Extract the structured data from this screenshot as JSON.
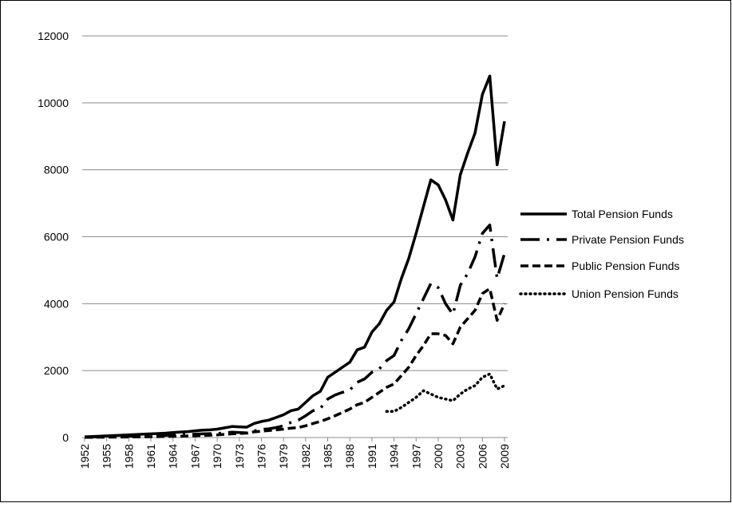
{
  "chart_data": {
    "type": "line",
    "x": [
      1952,
      1953,
      1954,
      1955,
      1956,
      1957,
      1958,
      1959,
      1960,
      1961,
      1962,
      1963,
      1964,
      1965,
      1966,
      1967,
      1968,
      1969,
      1970,
      1971,
      1972,
      1973,
      1974,
      1975,
      1976,
      1977,
      1978,
      1979,
      1980,
      1981,
      1982,
      1983,
      1984,
      1985,
      1986,
      1987,
      1988,
      1989,
      1990,
      1991,
      1992,
      1993,
      1994,
      1995,
      1996,
      1997,
      1998,
      1999,
      2000,
      2001,
      2002,
      2003,
      2004,
      2005,
      2006,
      2007,
      2008,
      2009
    ],
    "xlim": [
      1952,
      2009
    ],
    "xticks": [
      1952,
      1955,
      1958,
      1961,
      1964,
      1967,
      1970,
      1973,
      1976,
      1979,
      1982,
      1985,
      1988,
      1991,
      1994,
      1997,
      2000,
      2003,
      2006,
      2009
    ],
    "ylim": [
      0,
      12000
    ],
    "yticks": [
      0,
      2000,
      4000,
      6000,
      8000,
      10000,
      12000
    ],
    "grid": true,
    "legend": "right",
    "series": [
      {
        "name": "Total Pension Funds",
        "color": "#000000",
        "dash": "solid",
        "values": [
          20,
          30,
          40,
          50,
          60,
          70,
          80,
          90,
          100,
          110,
          120,
          130,
          150,
          165,
          175,
          200,
          220,
          230,
          250,
          290,
          330,
          320,
          310,
          420,
          480,
          520,
          600,
          680,
          800,
          850,
          1050,
          1250,
          1380,
          1800,
          1950,
          2100,
          2250,
          2620,
          2700,
          3150,
          3400,
          3800,
          4050,
          4750,
          5350,
          6100,
          6900,
          7700,
          7550,
          7100,
          6500,
          7850,
          8500,
          9100,
          10250,
          10800,
          8150,
          9450
        ]
      },
      {
        "name": "Private Pension Funds",
        "color": "#000000",
        "dash": "dashdot",
        "values": [
          10,
          15,
          20,
          25,
          30,
          35,
          40,
          45,
          50,
          55,
          60,
          65,
          75,
          85,
          90,
          100,
          110,
          115,
          120,
          140,
          160,
          150,
          140,
          200,
          240,
          260,
          300,
          350,
          450,
          520,
          650,
          800,
          870,
          1150,
          1270,
          1350,
          1420,
          1650,
          1750,
          1950,
          2050,
          2300,
          2450,
          2900,
          3250,
          3700,
          4150,
          4600,
          4480,
          4000,
          3680,
          4550,
          4900,
          5400,
          6100,
          6350,
          4750,
          5500
        ]
      },
      {
        "name": "Public Pension Funds",
        "color": "#000000",
        "dash": "dash",
        "values": [
          5,
          7,
          9,
          11,
          13,
          15,
          17,
          19,
          20,
          25,
          28,
          32,
          36,
          40,
          48,
          55,
          62,
          70,
          80,
          95,
          110,
          120,
          130,
          170,
          190,
          210,
          230,
          250,
          280,
          300,
          350,
          420,
          480,
          560,
          650,
          750,
          850,
          980,
          1050,
          1200,
          1350,
          1500,
          1600,
          1850,
          2100,
          2450,
          2750,
          3100,
          3100,
          3050,
          2800,
          3300,
          3550,
          3800,
          4300,
          4450,
          3500,
          4000
        ]
      },
      {
        "name": "Union Pension Funds",
        "color": "#000000",
        "dash": "dot",
        "values": [
          null,
          null,
          null,
          null,
          null,
          null,
          null,
          null,
          null,
          null,
          null,
          null,
          null,
          null,
          null,
          null,
          null,
          null,
          null,
          null,
          null,
          null,
          null,
          null,
          null,
          null,
          null,
          null,
          null,
          null,
          null,
          null,
          null,
          null,
          null,
          null,
          null,
          null,
          null,
          null,
          null,
          780,
          780,
          900,
          1050,
          1200,
          1400,
          1300,
          1200,
          1150,
          1100,
          1300,
          1450,
          1550,
          1800,
          1900,
          1450,
          1550
        ]
      }
    ]
  }
}
